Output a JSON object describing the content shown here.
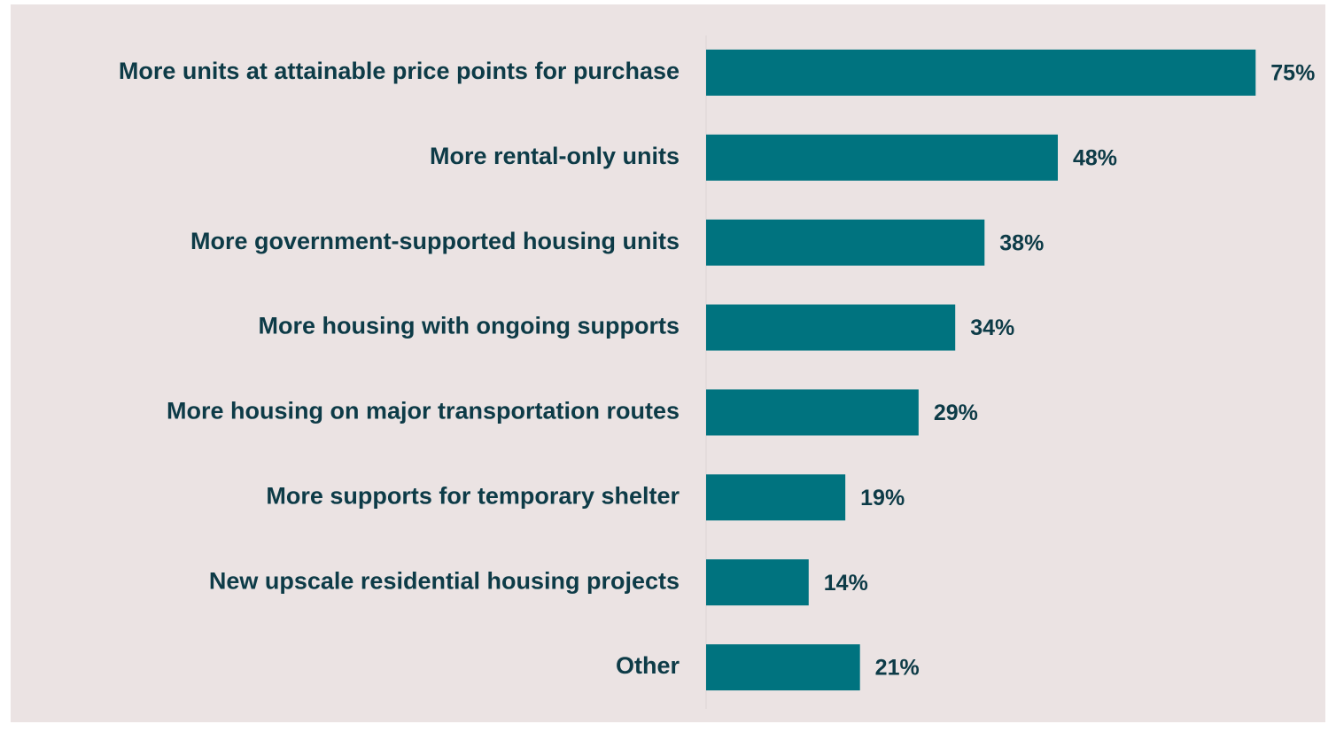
{
  "chart_data": {
    "type": "barh",
    "categories": [
      "More units at attainable price points for purchase",
      "More rental-only units",
      "More government-supported housing units",
      "More housing with ongoing supports",
      "More housing on major transportation routes",
      "More supports for temporary shelter",
      "New upscale residential housing projects",
      "Other"
    ],
    "values": [
      75,
      48,
      38,
      34,
      29,
      19,
      14,
      21
    ],
    "value_labels": [
      "75%",
      "48%",
      "38%",
      "34%",
      "29%",
      "19%",
      "14%",
      "21%"
    ],
    "color": "#00737f",
    "xlim": [
      0,
      85
    ]
  }
}
